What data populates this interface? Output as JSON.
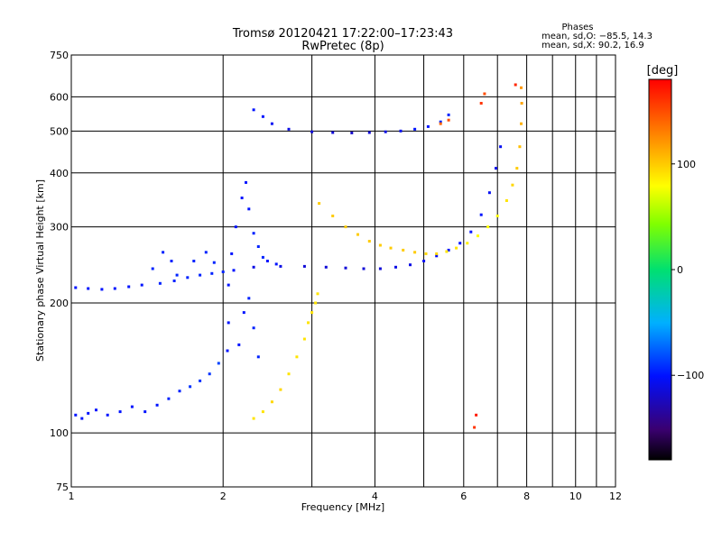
{
  "chart_data": {
    "type": "scatter",
    "title": "Tromsø 20120421 17:22:00–17:23:43",
    "subtitle": "RwPretec (8p)",
    "xlabel": "Frequency [MHz]",
    "ylabel": "Stationary phase Virtual Height [km]",
    "x_scale": "log",
    "y_scale": "log",
    "xlim": [
      1,
      12
    ],
    "ylim": [
      75,
      750
    ],
    "x_ticks": [
      1,
      2,
      4,
      6,
      8,
      10,
      12
    ],
    "x_gridlines": [
      1,
      2,
      3,
      4,
      5,
      6,
      7,
      8,
      9,
      10,
      11,
      12
    ],
    "y_ticks": [
      75,
      100,
      200,
      300,
      400,
      500,
      600,
      750
    ],
    "grid": true,
    "info": {
      "heading": "Phases",
      "line1": "mean, sd,O: −85.5, 14.3",
      "line2": "mean, sd,X:  90.2, 16.9"
    },
    "colorbar": {
      "label": "[deg]",
      "range": [
        -180,
        180
      ],
      "ticks": [
        "100",
        "0",
        "−100"
      ],
      "tick_values": [
        100,
        0,
        -100
      ]
    },
    "series": [
      {
        "mode": "O",
        "mean_phase_deg": -85.5,
        "points": [
          [
            1.02,
            110,
            -100
          ],
          [
            1.05,
            108,
            -100
          ],
          [
            1.08,
            111,
            -100
          ],
          [
            1.12,
            113,
            -100
          ],
          [
            1.18,
            110,
            -100
          ],
          [
            1.25,
            112,
            -100
          ],
          [
            1.32,
            115,
            -100
          ],
          [
            1.4,
            112,
            -100
          ],
          [
            1.48,
            116,
            -100
          ],
          [
            1.56,
            120,
            -95
          ],
          [
            1.64,
            125,
            -95
          ],
          [
            1.72,
            128,
            -90
          ],
          [
            1.8,
            132,
            -90
          ],
          [
            1.88,
            137,
            -90
          ],
          [
            1.96,
            145,
            -85
          ],
          [
            2.04,
            155,
            -100
          ],
          [
            1.02,
            217,
            -100
          ],
          [
            1.08,
            216,
            -100
          ],
          [
            1.15,
            215,
            -100
          ],
          [
            1.22,
            216,
            -100
          ],
          [
            1.3,
            218,
            -100
          ],
          [
            1.38,
            220,
            -100
          ],
          [
            1.5,
            222,
            -95
          ],
          [
            1.6,
            225,
            -95
          ],
          [
            1.7,
            229,
            -95
          ],
          [
            1.8,
            232,
            -95
          ],
          [
            1.9,
            234,
            -95
          ],
          [
            2.0,
            236,
            -95
          ],
          [
            2.1,
            238,
            -100
          ],
          [
            2.3,
            242,
            -110
          ],
          [
            2.6,
            243,
            -110
          ],
          [
            2.9,
            243,
            -115
          ],
          [
            3.2,
            242,
            -115
          ],
          [
            3.5,
            241,
            -115
          ],
          [
            3.8,
            240,
            -115
          ],
          [
            4.1,
            240,
            -115
          ],
          [
            4.4,
            242,
            -110
          ],
          [
            4.7,
            245,
            -110
          ],
          [
            5.0,
            250,
            -105
          ],
          [
            5.3,
            257,
            -105
          ],
          [
            5.6,
            265,
            -100
          ],
          [
            5.9,
            275,
            -100
          ],
          [
            6.2,
            292,
            -100
          ],
          [
            6.5,
            320,
            -100
          ],
          [
            6.75,
            360,
            -105
          ],
          [
            6.95,
            410,
            -110
          ],
          [
            7.1,
            460,
            -105
          ],
          [
            2.3,
            560,
            -100
          ],
          [
            2.4,
            540,
            -100
          ],
          [
            2.5,
            520,
            -105
          ],
          [
            2.7,
            505,
            -110
          ],
          [
            3.0,
            498,
            -115
          ],
          [
            3.3,
            496,
            -115
          ],
          [
            3.6,
            495,
            -120
          ],
          [
            3.9,
            496,
            -115
          ],
          [
            4.2,
            498,
            -110
          ],
          [
            4.5,
            500,
            -105
          ],
          [
            4.8,
            505,
            -100
          ],
          [
            5.1,
            512,
            -100
          ],
          [
            5.4,
            525,
            -95
          ],
          [
            5.6,
            545,
            -95
          ],
          [
            2.05,
            180,
            -100
          ],
          [
            2.05,
            220,
            -100
          ],
          [
            2.08,
            260,
            -100
          ],
          [
            2.12,
            300,
            -100
          ],
          [
            2.18,
            350,
            -100
          ],
          [
            2.22,
            380,
            -100
          ],
          [
            2.25,
            330,
            -100
          ],
          [
            2.3,
            290,
            -95
          ],
          [
            2.35,
            270,
            -95
          ],
          [
            2.4,
            255,
            -95
          ],
          [
            2.45,
            250,
            -100
          ],
          [
            2.55,
            246,
            -100
          ],
          [
            1.45,
            240,
            -95
          ],
          [
            1.52,
            262,
            -95
          ],
          [
            1.58,
            250,
            -95
          ],
          [
            1.62,
            232,
            -95
          ],
          [
            1.75,
            250,
            -95
          ],
          [
            1.85,
            262,
            -95
          ],
          [
            1.92,
            248,
            -95
          ],
          [
            2.15,
            160,
            -100
          ],
          [
            2.2,
            190,
            -100
          ],
          [
            2.25,
            205,
            -95
          ],
          [
            2.3,
            175,
            -95
          ],
          [
            2.35,
            150,
            -95
          ]
        ]
      },
      {
        "mode": "X",
        "mean_phase_deg": 90.2,
        "points": [
          [
            2.3,
            108,
            90
          ],
          [
            2.4,
            112,
            90
          ],
          [
            2.5,
            118,
            95
          ],
          [
            2.6,
            126,
            95
          ],
          [
            2.7,
            137,
            90
          ],
          [
            2.8,
            150,
            90
          ],
          [
            2.9,
            165,
            90
          ],
          [
            2.95,
            180,
            90
          ],
          [
            3.0,
            190,
            90
          ],
          [
            3.05,
            200,
            90
          ],
          [
            3.08,
            210,
            90
          ],
          [
            3.1,
            340,
            100
          ],
          [
            3.3,
            318,
            100
          ],
          [
            3.5,
            300,
            100
          ],
          [
            3.7,
            288,
            100
          ],
          [
            3.9,
            278,
            100
          ],
          [
            4.1,
            272,
            100
          ],
          [
            4.3,
            268,
            100
          ],
          [
            4.55,
            265,
            100
          ],
          [
            4.8,
            262,
            100
          ],
          [
            5.05,
            260,
            95
          ],
          [
            5.3,
            260,
            95
          ],
          [
            5.55,
            263,
            90
          ],
          [
            5.8,
            268,
            90
          ],
          [
            6.1,
            275,
            85
          ],
          [
            6.4,
            286,
            80
          ],
          [
            6.7,
            300,
            80
          ],
          [
            7.0,
            318,
            80
          ],
          [
            7.3,
            345,
            90
          ],
          [
            7.5,
            375,
            95
          ],
          [
            7.65,
            410,
            100
          ],
          [
            7.75,
            460,
            105
          ],
          [
            7.8,
            520,
            110
          ],
          [
            7.82,
            580,
            115
          ],
          [
            7.8,
            630,
            120
          ],
          [
            5.4,
            520,
            140
          ],
          [
            5.6,
            530,
            150
          ],
          [
            6.5,
            580,
            160
          ],
          [
            6.6,
            610,
            150
          ],
          [
            7.6,
            640,
            165
          ],
          [
            6.35,
            110,
            170
          ],
          [
            6.3,
            103,
            160
          ]
        ]
      }
    ]
  }
}
